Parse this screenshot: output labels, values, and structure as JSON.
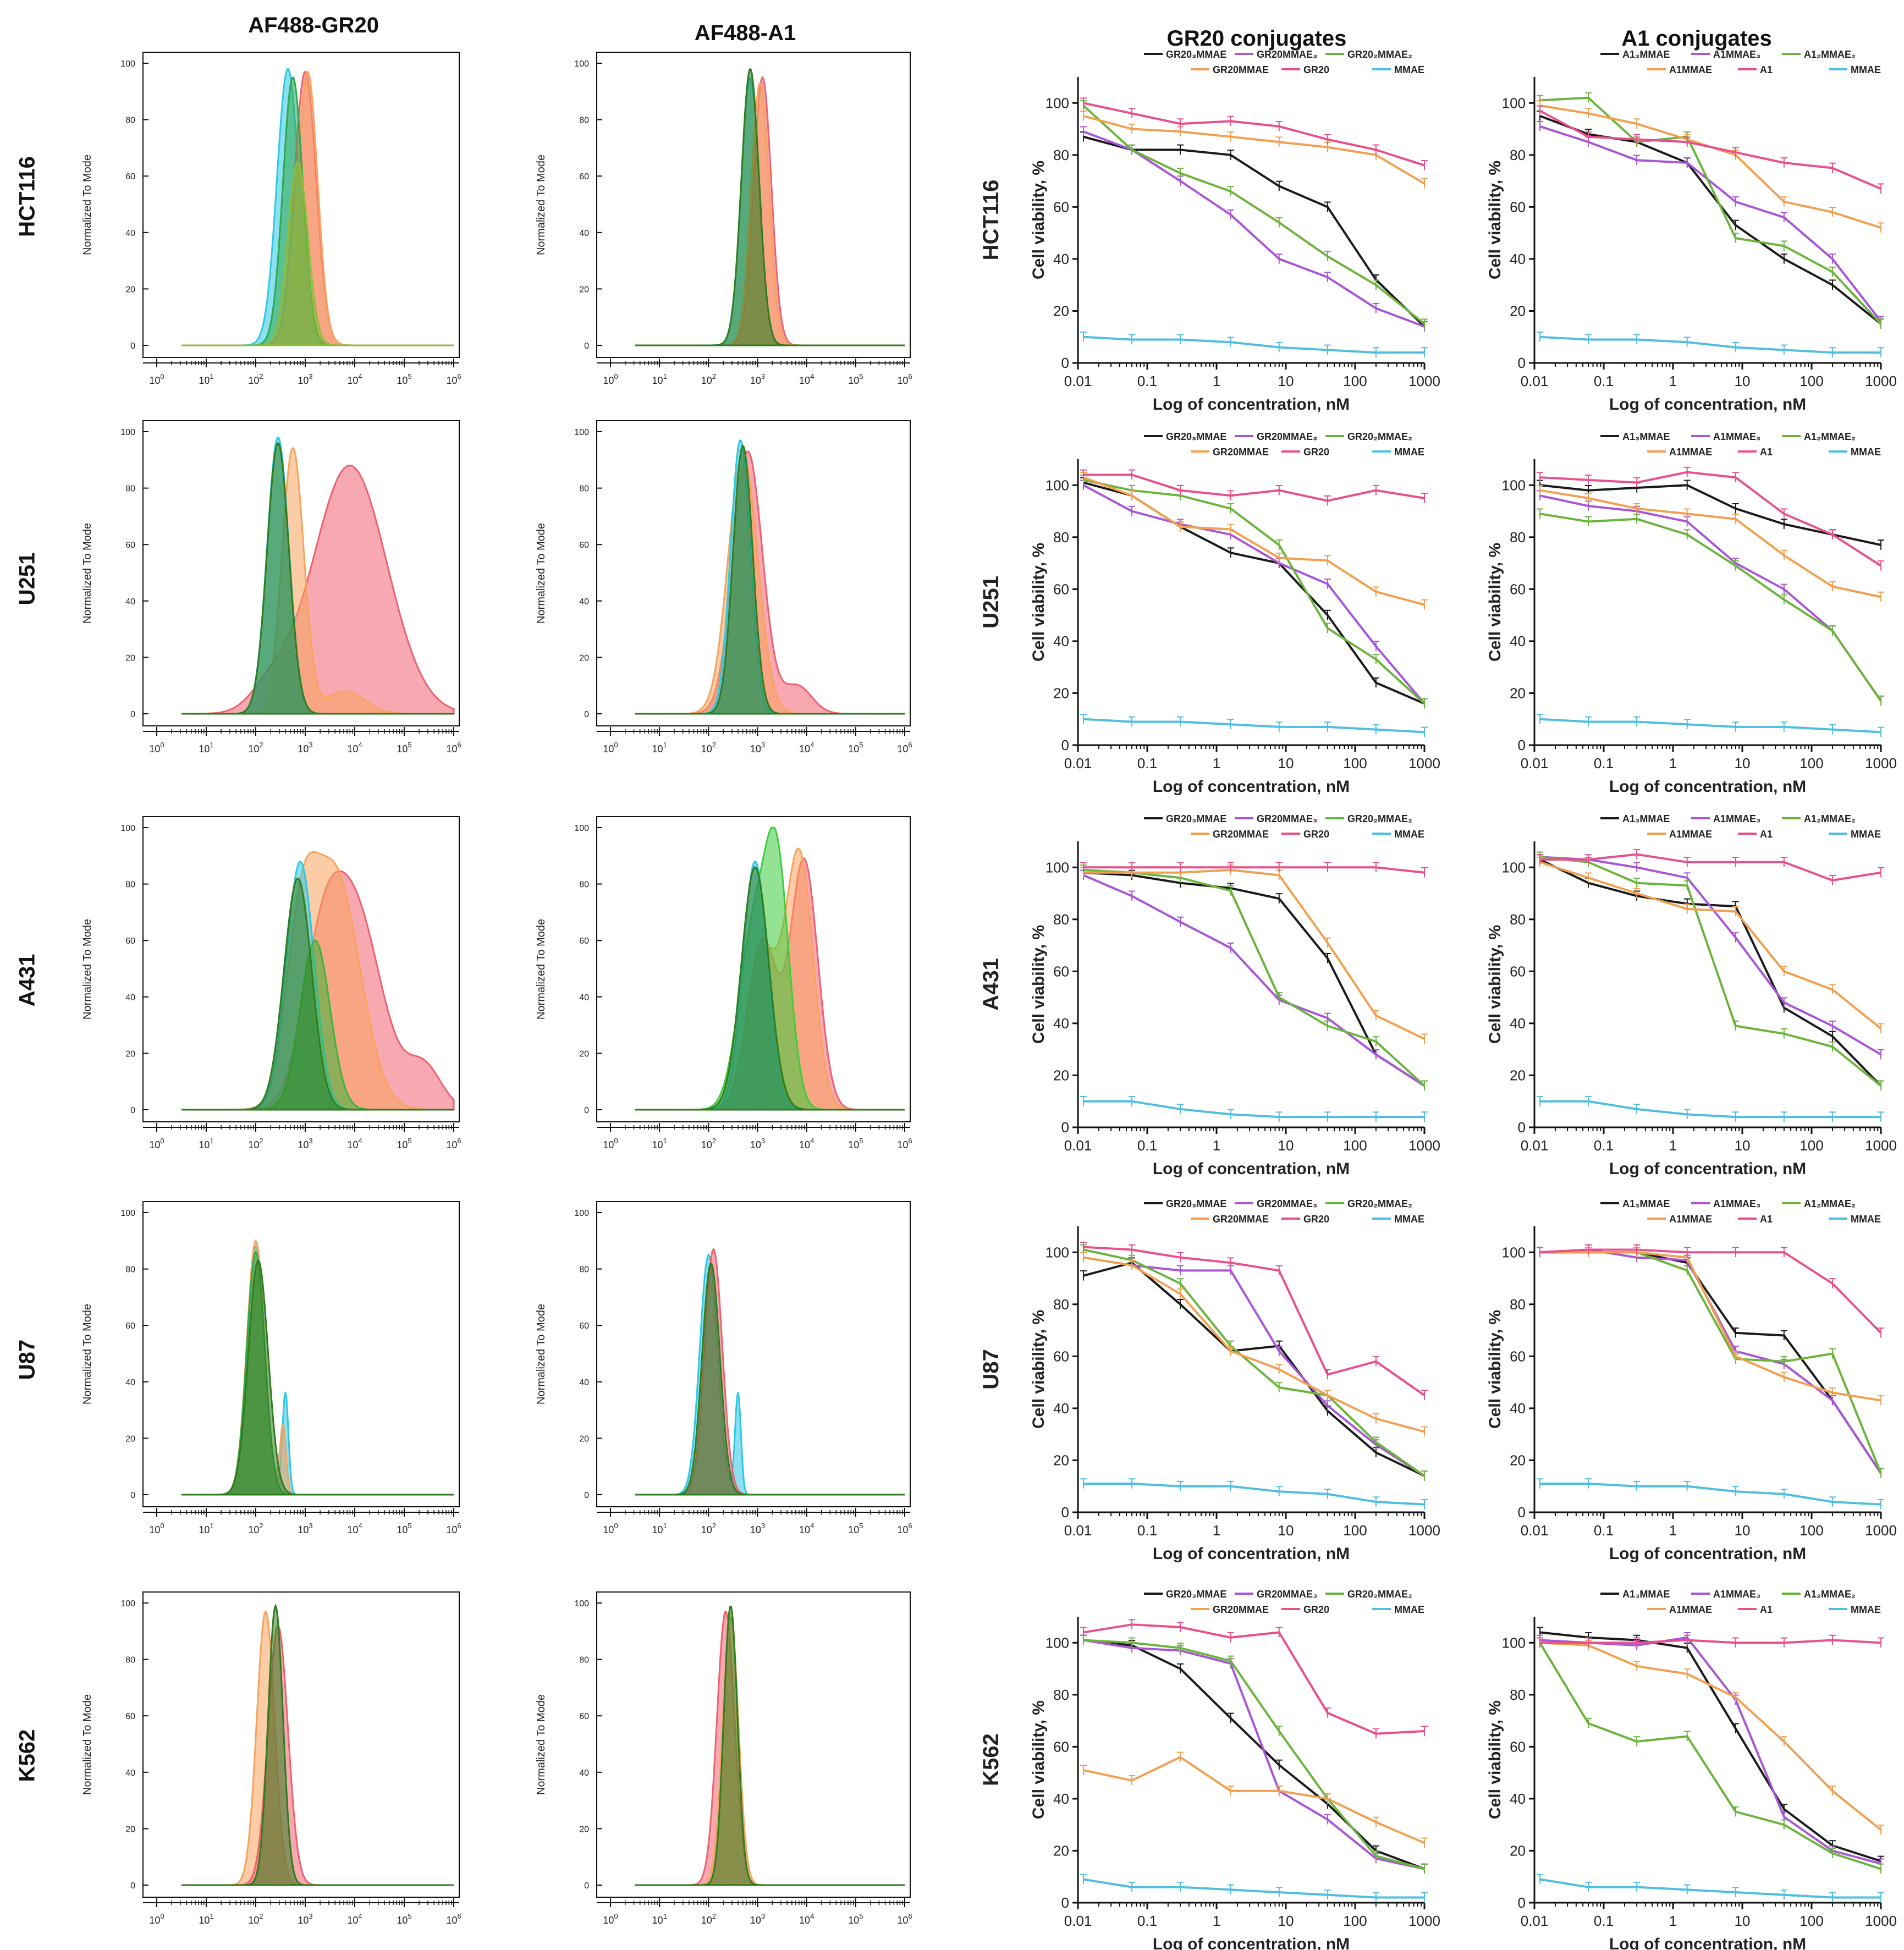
{
  "column_headers": [
    "AF488-GR20",
    "AF488-A1",
    "GR20 conjugates",
    "A1 conjugates"
  ],
  "row_labels": [
    "HCT116",
    "U251",
    "A431",
    "U87",
    "K562"
  ],
  "flow": {
    "ylabel": "Normalized To Mode",
    "yticks": [
      "0",
      "20",
      "40",
      "60",
      "80",
      "100"
    ],
    "xticks": [
      "10^0",
      "10^1",
      "10^2",
      "10^3",
      "10^4",
      "10^5",
      "10^6"
    ]
  },
  "viability_axes": {
    "ylabel": "Cell viability, %",
    "xlabel": "Log of concentration, nM",
    "yticks": [
      "0",
      "20",
      "40",
      "60",
      "80",
      "100"
    ],
    "xticks": [
      "0.01",
      "0.1",
      "1",
      "10",
      "100",
      "1000"
    ]
  },
  "legend_gr20": [
    "GR20₃MMAE",
    "GR20MMAE₃",
    "GR20₂MMAE₂",
    "GR20MMAE",
    "GR20",
    "MMAE"
  ],
  "legend_a1": [
    "A1₃MMAE",
    "A1MMAE₃",
    "A1₂MMAE₂",
    "A1MMAE",
    "A1",
    "MMAE"
  ],
  "colors": {
    "s1": "#1a1a1a",
    "s2": "#a855d6",
    "s3": "#6bb43c",
    "s4": "#f0a050",
    "s5": "#e6508c",
    "s6": "#50bede",
    "hist_cyan": "#2ec8e6",
    "hist_green": "#2fa84a",
    "hist_orange": "#f7a35c",
    "hist_red": "#f06070",
    "hist_dkgreen": "#2e7d1e"
  },
  "chart_data": [
    {
      "type": "line",
      "title": "GR20 conjugates — HCT116",
      "xlabel": "Log of concentration, nM",
      "ylabel": "Cell viability, %",
      "x": [
        0.012,
        0.06,
        0.3,
        1.6,
        8,
        40,
        200,
        1000
      ],
      "ylim": [
        0,
        110
      ],
      "xscale": "log",
      "series": [
        {
          "name": "GR20₃MMAE",
          "values": [
            87,
            82,
            82,
            80,
            68,
            60,
            32,
            14
          ]
        },
        {
          "name": "GR20MMAE₃",
          "values": [
            89,
            82,
            70,
            57,
            40,
            33,
            21,
            14
          ]
        },
        {
          "name": "GR20₂MMAE₂",
          "values": [
            99,
            82,
            73,
            66,
            54,
            41,
            30,
            15
          ]
        },
        {
          "name": "GR20MMAE",
          "values": [
            95,
            90,
            89,
            87,
            85,
            83,
            80,
            69
          ]
        },
        {
          "name": "GR20",
          "values": [
            100,
            96,
            92,
            93,
            91,
            86,
            82,
            76
          ]
        },
        {
          "name": "MMAE",
          "values": [
            10,
            9,
            9,
            8,
            6,
            5,
            4,
            4
          ]
        }
      ]
    },
    {
      "type": "line",
      "title": "A1 conjugates — HCT116",
      "xlabel": "Log of concentration, nM",
      "ylabel": "Cell viability, %",
      "x": [
        0.012,
        0.06,
        0.3,
        1.6,
        8,
        40,
        200,
        1000
      ],
      "ylim": [
        0,
        110
      ],
      "xscale": "log",
      "series": [
        {
          "name": "A1₃MMAE",
          "values": [
            95,
            88,
            85,
            77,
            53,
            40,
            30,
            15
          ]
        },
        {
          "name": "A1MMAE₃",
          "values": [
            91,
            85,
            78,
            77,
            62,
            56,
            40,
            16
          ]
        },
        {
          "name": "A1₂MMAE₂",
          "values": [
            101,
            102,
            85,
            87,
            48,
            45,
            35,
            15
          ]
        },
        {
          "name": "A1MMAE",
          "values": [
            99,
            96,
            92,
            86,
            80,
            62,
            58,
            52
          ]
        },
        {
          "name": "A1",
          "values": [
            97,
            87,
            86,
            85,
            81,
            77,
            75,
            67
          ]
        },
        {
          "name": "MMAE",
          "values": [
            10,
            9,
            9,
            8,
            6,
            5,
            4,
            4
          ]
        }
      ]
    },
    {
      "type": "line",
      "title": "GR20 conjugates — U251",
      "xlabel": "Log of concentration, nM",
      "ylabel": "Cell viability, %",
      "x": [
        0.012,
        0.06,
        0.3,
        1.6,
        8,
        40,
        200,
        1000
      ],
      "ylim": [
        0,
        110
      ],
      "xscale": "log",
      "series": [
        {
          "name": "GR20₃MMAE",
          "values": [
            101,
            96,
            84,
            74,
            70,
            50,
            24,
            16
          ]
        },
        {
          "name": "GR20MMAE₃",
          "values": [
            100,
            90,
            85,
            81,
            70,
            62,
            38,
            16
          ]
        },
        {
          "name": "GR20₂MMAE₂",
          "values": [
            102,
            98,
            96,
            91,
            77,
            45,
            33,
            16
          ]
        },
        {
          "name": "GR20MMAE",
          "values": [
            103,
            96,
            84,
            83,
            72,
            71,
            59,
            54
          ]
        },
        {
          "name": "GR20",
          "values": [
            104,
            104,
            98,
            96,
            98,
            94,
            98,
            95
          ]
        },
        {
          "name": "MMAE",
          "values": [
            10,
            9,
            9,
            8,
            7,
            7,
            6,
            5
          ]
        }
      ]
    },
    {
      "type": "line",
      "title": "A1 conjugates — U251",
      "xlabel": "Log of concentration, nM",
      "ylabel": "Cell viability, %",
      "x": [
        0.012,
        0.06,
        0.3,
        1.6,
        8,
        40,
        200,
        1000
      ],
      "ylim": [
        0,
        110
      ],
      "xscale": "log",
      "series": [
        {
          "name": "A1₃MMAE",
          "values": [
            100,
            98,
            99,
            100,
            91,
            85,
            81,
            77
          ]
        },
        {
          "name": "A1MMAE₃",
          "values": [
            96,
            92,
            90,
            86,
            70,
            60,
            44,
            17
          ]
        },
        {
          "name": "A1₂MMAE₂",
          "values": [
            89,
            86,
            87,
            81,
            69,
            56,
            44,
            17
          ]
        },
        {
          "name": "A1MMAE",
          "values": [
            98,
            95,
            91,
            89,
            87,
            73,
            61,
            57
          ]
        },
        {
          "name": "A1",
          "values": [
            103,
            102,
            101,
            105,
            103,
            89,
            81,
            69
          ]
        },
        {
          "name": "MMAE",
          "values": [
            10,
            9,
            9,
            8,
            7,
            7,
            6,
            5
          ]
        }
      ]
    },
    {
      "type": "line",
      "title": "GR20 conjugates — A431",
      "xlabel": "Log of concentration, nM",
      "ylabel": "Cell viability, %",
      "x": [
        0.012,
        0.06,
        0.3,
        1.6,
        8,
        40,
        200,
        1000
      ],
      "ylim": [
        0,
        110
      ],
      "xscale": "log",
      "series": [
        {
          "name": "GR20₃MMAE",
          "values": [
            98,
            97,
            94,
            92,
            88,
            65,
            28,
            16
          ]
        },
        {
          "name": "GR20MMAE₃",
          "values": [
            97,
            89,
            79,
            69,
            49,
            42,
            28,
            16
          ]
        },
        {
          "name": "GR20₂MMAE₂",
          "values": [
            99,
            98,
            96,
            91,
            50,
            39,
            33,
            16
          ]
        },
        {
          "name": "GR20MMAE",
          "values": [
            98,
            98,
            98,
            99,
            97,
            71,
            43,
            34
          ]
        },
        {
          "name": "GR20",
          "values": [
            100,
            100,
            100,
            100,
            100,
            100,
            100,
            98
          ]
        },
        {
          "name": "MMAE",
          "values": [
            10,
            10,
            7,
            5,
            4,
            4,
            4,
            4
          ]
        }
      ]
    },
    {
      "type": "line",
      "title": "A1 conjugates — A431",
      "xlabel": "Log of concentration, nM",
      "ylabel": "Cell viability, %",
      "x": [
        0.012,
        0.06,
        0.3,
        1.6,
        8,
        40,
        200,
        1000
      ],
      "ylim": [
        0,
        110
      ],
      "xscale": "log",
      "series": [
        {
          "name": "A1₃MMAE",
          "values": [
            103,
            94,
            89,
            86,
            85,
            46,
            35,
            16
          ]
        },
        {
          "name": "A1MMAE₃",
          "values": [
            104,
            103,
            100,
            96,
            73,
            48,
            39,
            28
          ]
        },
        {
          "name": "A1₂MMAE₂",
          "values": [
            104,
            102,
            94,
            93,
            39,
            36,
            31,
            16
          ]
        },
        {
          "name": "A1MMAE",
          "values": [
            102,
            96,
            90,
            84,
            83,
            60,
            53,
            38
          ]
        },
        {
          "name": "A1",
          "values": [
            103,
            103,
            105,
            102,
            102,
            102,
            95,
            98
          ]
        },
        {
          "name": "MMAE",
          "values": [
            10,
            10,
            7,
            5,
            4,
            4,
            4,
            4
          ]
        }
      ]
    },
    {
      "type": "line",
      "title": "GR20 conjugates — U87",
      "xlabel": "Log of concentration, nM",
      "ylabel": "Cell viability, %",
      "x": [
        0.012,
        0.06,
        0.3,
        1.6,
        8,
        40,
        200,
        1000
      ],
      "ylim": [
        0,
        110
      ],
      "xscale": "log",
      "series": [
        {
          "name": "GR20₃MMAE",
          "values": [
            91,
            96,
            80,
            62,
            64,
            39,
            23,
            14
          ]
        },
        {
          "name": "GR20MMAE₃",
          "values": [
            98,
            95,
            93,
            93,
            62,
            41,
            26,
            14
          ]
        },
        {
          "name": "GR20₂MMAE₂",
          "values": [
            101,
            97,
            88,
            64,
            48,
            45,
            27,
            14
          ]
        },
        {
          "name": "GR20MMAE",
          "values": [
            98,
            95,
            84,
            62,
            55,
            45,
            36,
            31
          ]
        },
        {
          "name": "GR20",
          "values": [
            102,
            101,
            98,
            96,
            93,
            53,
            58,
            45
          ]
        },
        {
          "name": "MMAE",
          "values": [
            11,
            11,
            10,
            10,
            8,
            7,
            4,
            3
          ]
        }
      ]
    },
    {
      "type": "line",
      "title": "A1 conjugates — U87",
      "xlabel": "Log of concentration, nM",
      "ylabel": "Cell viability, %",
      "x": [
        0.012,
        0.06,
        0.3,
        1.6,
        8,
        40,
        200,
        1000
      ],
      "ylim": [
        0,
        110
      ],
      "xscale": "log",
      "series": [
        {
          "name": "A1₃MMAE",
          "values": [
            100,
            100,
            100,
            96,
            69,
            68,
            43,
            15
          ]
        },
        {
          "name": "A1MMAE₃",
          "values": [
            100,
            101,
            98,
            97,
            62,
            57,
            43,
            15
          ]
        },
        {
          "name": "A1₂MMAE₂",
          "values": [
            100,
            100,
            100,
            93,
            59,
            58,
            61,
            15
          ]
        },
        {
          "name": "A1MMAE",
          "values": [
            100,
            100,
            100,
            98,
            60,
            52,
            46,
            43
          ]
        },
        {
          "name": "A1",
          "values": [
            100,
            101,
            101,
            100,
            100,
            100,
            88,
            69
          ]
        },
        {
          "name": "MMAE",
          "values": [
            11,
            11,
            10,
            10,
            8,
            7,
            4,
            3
          ]
        }
      ]
    },
    {
      "type": "line",
      "title": "GR20 conjugates — K562",
      "xlabel": "Log of concentration, nM",
      "ylabel": "Cell viability, %",
      "x": [
        0.012,
        0.06,
        0.3,
        1.6,
        8,
        40,
        200,
        1000
      ],
      "ylim": [
        0,
        110
      ],
      "xscale": "log",
      "series": [
        {
          "name": "GR20₃MMAE",
          "values": [
            101,
            99,
            90,
            71,
            53,
            38,
            20,
            13
          ]
        },
        {
          "name": "GR20MMAE₃",
          "values": [
            101,
            98,
            97,
            92,
            43,
            32,
            17,
            13
          ]
        },
        {
          "name": "GR20₂MMAE₂",
          "values": [
            101,
            100,
            98,
            93,
            66,
            40,
            18,
            13
          ]
        },
        {
          "name": "GR20MMAE",
          "values": [
            51,
            47,
            56,
            43,
            43,
            40,
            31,
            23
          ]
        },
        {
          "name": "GR20",
          "values": [
            104,
            107,
            106,
            102,
            104,
            73,
            65,
            66
          ]
        },
        {
          "name": "MMAE",
          "values": [
            9,
            6,
            6,
            5,
            4,
            3,
            2,
            2
          ]
        }
      ]
    },
    {
      "type": "line",
      "title": "A1 conjugates — K562",
      "xlabel": "Log of concentration, nM",
      "ylabel": "Cell viability, %",
      "x": [
        0.012,
        0.06,
        0.3,
        1.6,
        8,
        40,
        200,
        1000
      ],
      "ylim": [
        0,
        110
      ],
      "xscale": "log",
      "series": [
        {
          "name": "A1₃MMAE",
          "values": [
            104,
            102,
            101,
            98,
            67,
            36,
            22,
            16
          ]
        },
        {
          "name": "A1MMAE₃",
          "values": [
            101,
            100,
            99,
            102,
            78,
            33,
            20,
            15
          ]
        },
        {
          "name": "A1₂MMAE₂",
          "values": [
            100,
            69,
            62,
            64,
            35,
            30,
            19,
            13
          ]
        },
        {
          "name": "A1MMAE",
          "values": [
            100,
            99,
            91,
            88,
            79,
            62,
            43,
            28
          ]
        },
        {
          "name": "A1",
          "values": [
            100,
            100,
            100,
            101,
            100,
            100,
            101,
            100
          ]
        },
        {
          "name": "MMAE",
          "values": [
            9,
            6,
            6,
            5,
            4,
            3,
            2,
            2
          ]
        }
      ]
    }
  ]
}
